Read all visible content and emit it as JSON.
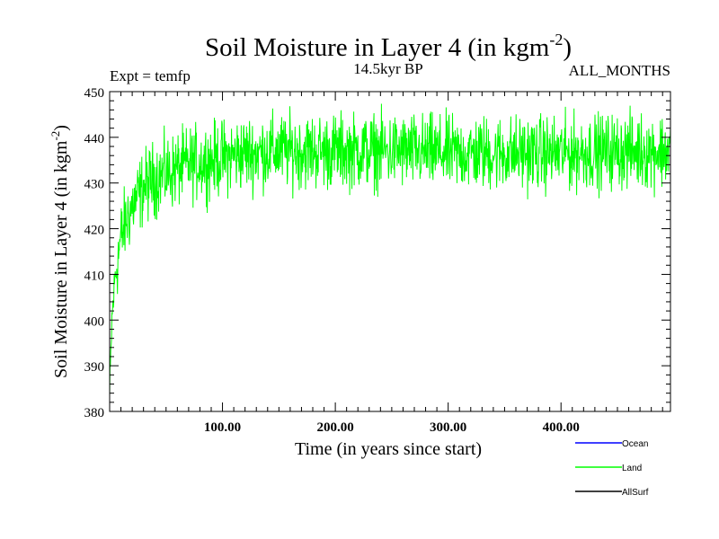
{
  "chart_data": {
    "type": "line",
    "title": "Soil Moisture in Layer 4 (in kgm",
    "title_sup": "-2",
    "title_close": ")",
    "subtitle_left": "Expt = temfp",
    "subtitle_center": "14.5kyr BP",
    "subtitle_right": "ALL_MONTHS",
    "xlabel": "Time (in years since start)",
    "ylabel": "Soil Moisture in Layer 4 (in kgm",
    "ylabel_sup": "-2",
    "ylabel_close": ")",
    "xlim": [
      0,
      497
    ],
    "ylim": [
      380,
      450
    ],
    "x_ticks": [
      100,
      200,
      300,
      400
    ],
    "x_tick_labels": [
      "100.00",
      "200.00",
      "300.00",
      "400.00"
    ],
    "y_ticks": [
      380,
      390,
      400,
      410,
      420,
      430,
      440,
      450
    ],
    "y_tick_labels": [
      "380",
      "390",
      "400",
      "410",
      "420",
      "430",
      "440",
      "450"
    ],
    "legend": [
      {
        "name": "Ocean",
        "color": "#0000ff"
      },
      {
        "name": "Land",
        "color": "#00ff00"
      },
      {
        "name": "AllSurf",
        "color": "#000000"
      }
    ],
    "series": [
      {
        "name": "Land",
        "color": "#00ff00",
        "description": "monthly values, noisy",
        "x": [
          0,
          2,
          5,
          10,
          15,
          20,
          30,
          40,
          50,
          60,
          70,
          80,
          100,
          120,
          150,
          200,
          250,
          300,
          350,
          400,
          450,
          497
        ],
        "y": [
          383,
          400,
          410,
          418,
          422,
          425,
          429,
          431,
          432,
          433,
          434,
          434.5,
          435.5,
          436.5,
          437,
          437,
          437,
          436.5,
          436.5,
          436.5,
          437,
          437
        ],
        "noise_amplitude": 5
      }
    ]
  }
}
